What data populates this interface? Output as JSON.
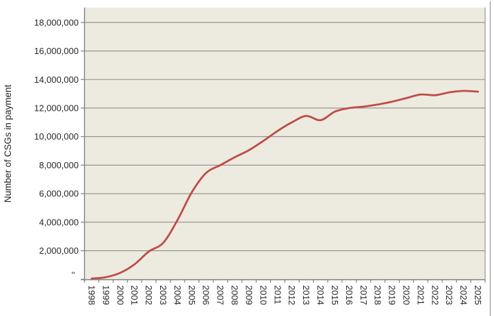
{
  "chart_data": {
    "type": "line",
    "title": "",
    "xlabel": "",
    "ylabel": "Number of CSGs in payment",
    "categories": [
      "1998",
      "1999",
      "2000",
      "2001",
      "2002",
      "2003",
      "2004",
      "2005",
      "2006",
      "2007",
      "2008",
      "2009",
      "2010",
      "2011",
      "2012",
      "2013",
      "2014",
      "2015",
      "2016",
      "2017",
      "2018",
      "2019",
      "2020",
      "2021",
      "2022",
      "2023",
      "2024",
      "2025"
    ],
    "series": [
      {
        "name": "Number of CSGs in payment",
        "values": [
          50000,
          150000,
          450000,
          1050000,
          1950000,
          2550000,
          4150000,
          6100000,
          7450000,
          8000000,
          8550000,
          9050000,
          9700000,
          10400000,
          11000000,
          11450000,
          11150000,
          11750000,
          12000000,
          12100000,
          12250000,
          12450000,
          12700000,
          12950000,
          12900000,
          13100000,
          13200000,
          13150000
        ]
      }
    ],
    "ylim": [
      0,
      19000000
    ],
    "ytick_interval": 2000000,
    "ytick_labels_top_down": [
      "18,000,000",
      "16,000,000",
      "14,000,000",
      "12,000,000",
      "10,000,000",
      "8,000,000",
      "6,000,000",
      "4,000,000",
      "2,000,000"
    ],
    "zero_tick_label": "''",
    "grid": true,
    "legend": false,
    "smooth_line": true,
    "colors": {
      "line": "#be4b47",
      "plot_background": "#edeadf",
      "gridline": "#8c8c8c",
      "axis": "#808080",
      "tick_text": "#262626",
      "frame_edge": "#9a9a9a",
      "page_background": "#ffffff"
    }
  }
}
